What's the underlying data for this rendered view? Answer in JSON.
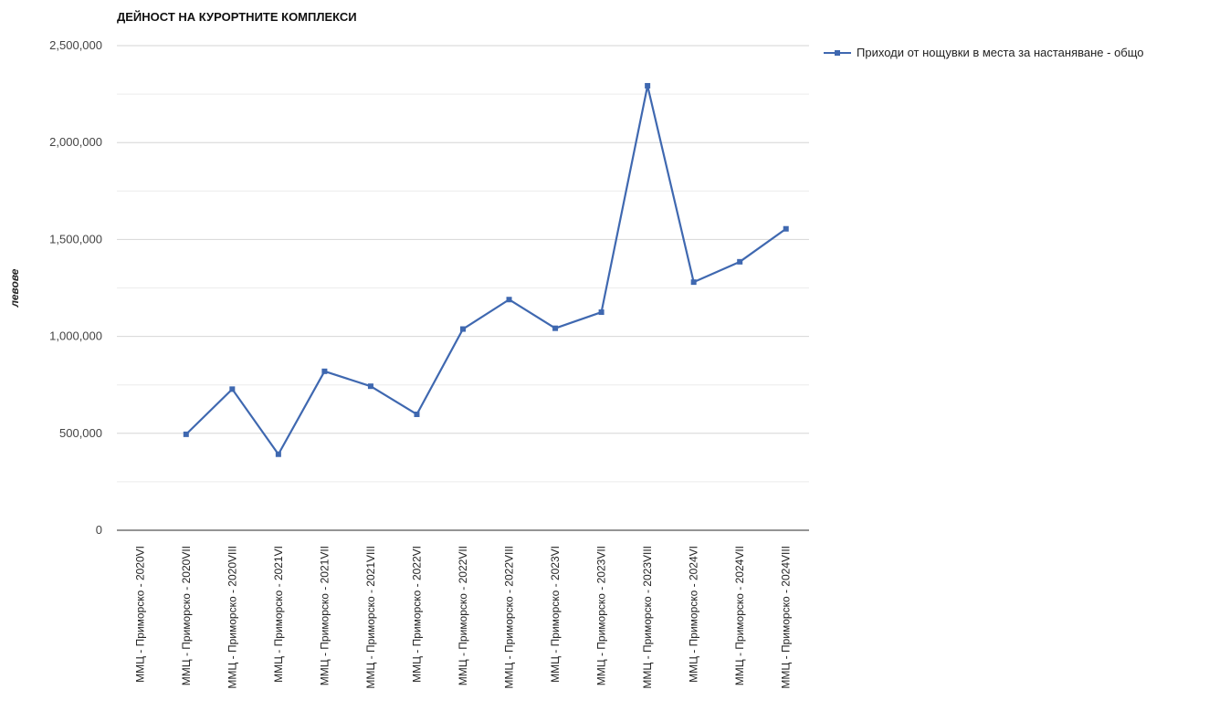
{
  "chart_data": {
    "type": "line",
    "title": "ДЕЙНОСТ НА КУРОРТНИТЕ КОМПЛЕКСИ",
    "xlabel": "",
    "ylabel": "левове",
    "ylim": [
      0,
      2500000
    ],
    "y_ticks": [
      "0",
      "500,000",
      "1,000,000",
      "1,500,000",
      "2,000,000",
      "2,500,000"
    ],
    "grid": true,
    "legend_position": "top-right",
    "series_color": "#3f68b0",
    "categories": [
      "ММЦ - Приморско - 2020VI",
      "ММЦ - Приморско - 2020VII",
      "ММЦ - Приморско - 2020VIII",
      "ММЦ - Приморско - 2021VI",
      "ММЦ - Приморско - 2021VII",
      "ММЦ - Приморско - 2021VIII",
      "ММЦ - Приморско - 2022VI",
      "ММЦ - Приморско - 2022VII",
      "ММЦ - Приморско - 2022VIII",
      "ММЦ - Приморско - 2023VI",
      "ММЦ - Приморско - 2023VII",
      "ММЦ - Приморско - 2023VIII",
      "ММЦ - Приморско - 2024VI",
      "ММЦ - Приморско - 2024VII",
      "ММЦ - Приморско - 2024VIII"
    ],
    "series": [
      {
        "name": "Приходи от нощувки в места за настаняване - общо",
        "values": [
          null,
          495000,
          728000,
          392000,
          820000,
          743000,
          598000,
          1038000,
          1190000,
          1042000,
          1125000,
          2293000,
          1280000,
          1385000,
          1555000
        ]
      }
    ]
  }
}
